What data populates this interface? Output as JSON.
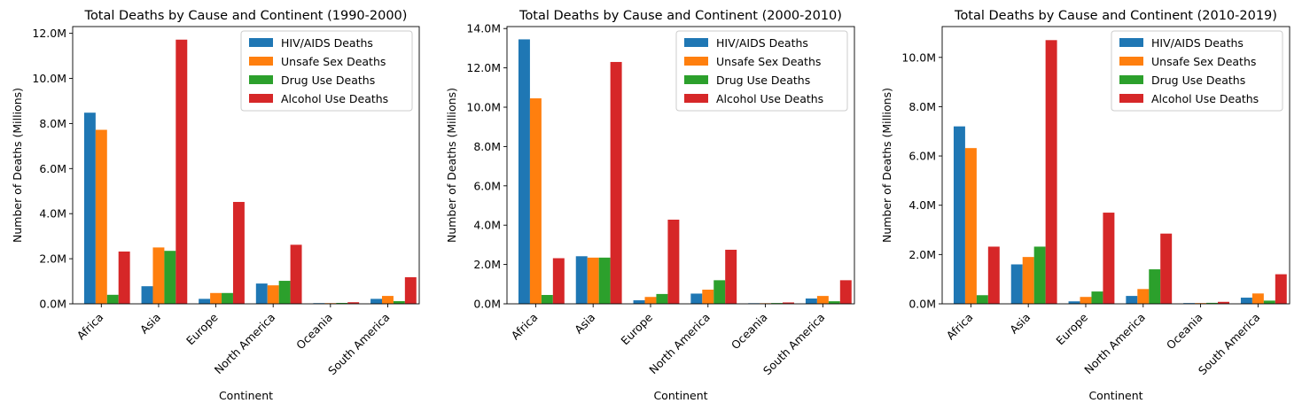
{
  "chart_data": [
    {
      "type": "bar",
      "title": "Total Deaths by Cause and Continent (1990-2000)",
      "xlabel": "Continent",
      "ylabel": "Number of Deaths (Millions)",
      "categories": [
        "Africa",
        "Asia",
        "Europe",
        "North America",
        "Oceania",
        "South America"
      ],
      "ylim": [
        0,
        12.3
      ],
      "yticks": [
        0,
        2,
        4,
        6,
        8,
        10,
        12
      ],
      "ytick_labels": [
        "0.0M",
        "2.0M",
        "4.0M",
        "6.0M",
        "8.0M",
        "10.0M",
        "12.0M"
      ],
      "legend_position": "upper right",
      "series": [
        {
          "name": "HIV/AIDS Deaths",
          "color": "#1f77b4",
          "values": [
            8.48,
            0.78,
            0.22,
            0.9,
            0.03,
            0.22
          ]
        },
        {
          "name": "Unsafe Sex Deaths",
          "color": "#ff7f0e",
          "values": [
            7.72,
            2.5,
            0.48,
            0.82,
            0.03,
            0.35
          ]
        },
        {
          "name": "Drug Use Deaths",
          "color": "#2ca02c",
          "values": [
            0.4,
            2.35,
            0.48,
            1.02,
            0.04,
            0.12
          ]
        },
        {
          "name": "Alcohol Use Deaths",
          "color": "#d62728",
          "values": [
            2.32,
            11.72,
            4.52,
            2.62,
            0.07,
            1.18
          ]
        }
      ]
    },
    {
      "type": "bar",
      "title": "Total Deaths by Cause and Continent (2000-2010)",
      "xlabel": "Continent",
      "ylabel": "Number of Deaths (Millions)",
      "categories": [
        "Africa",
        "Asia",
        "Europe",
        "North America",
        "Oceania",
        "South America"
      ],
      "ylim": [
        0,
        14.1
      ],
      "yticks": [
        0,
        2,
        4,
        6,
        8,
        10,
        12,
        14
      ],
      "ytick_labels": [
        "0.0M",
        "2.0M",
        "4.0M",
        "6.0M",
        "8.0M",
        "10.0M",
        "12.0M",
        "14.0M"
      ],
      "legend_position": "upper right",
      "series": [
        {
          "name": "HIV/AIDS Deaths",
          "color": "#1f77b4",
          "values": [
            13.45,
            2.42,
            0.18,
            0.52,
            0.03,
            0.27
          ]
        },
        {
          "name": "Unsafe Sex Deaths",
          "color": "#ff7f0e",
          "values": [
            10.45,
            2.35,
            0.35,
            0.72,
            0.03,
            0.4
          ]
        },
        {
          "name": "Drug Use Deaths",
          "color": "#2ca02c",
          "values": [
            0.45,
            2.35,
            0.5,
            1.2,
            0.04,
            0.13
          ]
        },
        {
          "name": "Alcohol Use Deaths",
          "color": "#d62728",
          "values": [
            2.32,
            12.3,
            4.28,
            2.75,
            0.07,
            1.2
          ]
        }
      ]
    },
    {
      "type": "bar",
      "title": "Total Deaths by Cause and Continent (2010-2019)",
      "xlabel": "Continent",
      "ylabel": "Number of Deaths (Millions)",
      "categories": [
        "Africa",
        "Asia",
        "Europe",
        "North America",
        "Oceania",
        "South America"
      ],
      "ylim": [
        0,
        11.25
      ],
      "yticks": [
        0,
        2,
        4,
        6,
        8,
        10
      ],
      "ytick_labels": [
        "0.0M",
        "2.0M",
        "4.0M",
        "6.0M",
        "8.0M",
        "10.0M"
      ],
      "legend_position": "upper right",
      "series": [
        {
          "name": "HIV/AIDS Deaths",
          "color": "#1f77b4",
          "values": [
            7.2,
            1.6,
            0.1,
            0.32,
            0.03,
            0.25
          ]
        },
        {
          "name": "Unsafe Sex Deaths",
          "color": "#ff7f0e",
          "values": [
            6.32,
            1.9,
            0.28,
            0.6,
            0.03,
            0.42
          ]
        },
        {
          "name": "Drug Use Deaths",
          "color": "#2ca02c",
          "values": [
            0.35,
            2.32,
            0.5,
            1.4,
            0.04,
            0.13
          ]
        },
        {
          "name": "Alcohol Use Deaths",
          "color": "#d62728",
          "values": [
            2.32,
            10.7,
            3.7,
            2.85,
            0.08,
            1.2
          ]
        }
      ]
    }
  ]
}
